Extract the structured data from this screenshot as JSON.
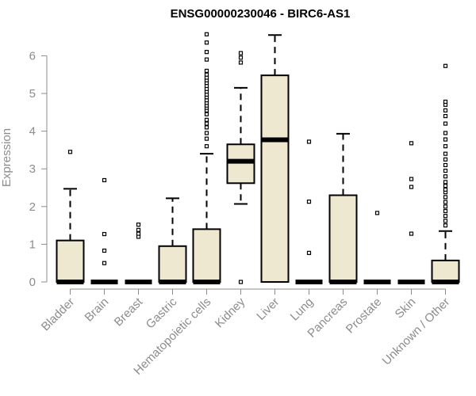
{
  "chart_data": {
    "type": "boxplot",
    "title": "ENSG00000230046 - BIRC6-AS1",
    "xlabel": "",
    "ylabel": "Expression",
    "ylim": [
      0,
      6.6
    ],
    "yticks": [
      0,
      1,
      2,
      3,
      4,
      5,
      6
    ],
    "colors": {
      "box_fill": "#efe8d0",
      "stroke": "#000000",
      "axis": "#8c8c8c"
    },
    "categories": [
      "Bladder",
      "Brain",
      "Breast",
      "Gastric",
      "Hematopoietic cells",
      "Kidney",
      "Liver",
      "Lung",
      "Pancreas",
      "Prostate",
      "Skin",
      "Unknown / Other"
    ],
    "series": [
      {
        "name": "Bladder",
        "q1": 0,
        "median": 0,
        "q3": 1.1,
        "whisker_low": 0,
        "whisker_high": 2.47,
        "outliers": [
          3.45
        ]
      },
      {
        "name": "Brain",
        "q1": 0,
        "median": 0,
        "q3": 0,
        "whisker_low": 0,
        "whisker_high": 0,
        "outliers": [
          0.5,
          0.83,
          1.27,
          2.7
        ]
      },
      {
        "name": "Breast",
        "q1": 0,
        "median": 0,
        "q3": 0,
        "whisker_low": 0,
        "whisker_high": 0,
        "outliers": [
          1.2,
          1.28,
          1.38,
          1.52
        ]
      },
      {
        "name": "Gastric",
        "q1": 0,
        "median": 0,
        "q3": 0.95,
        "whisker_low": 0,
        "whisker_high": 2.22,
        "outliers": []
      },
      {
        "name": "Hematopoietic cells",
        "q1": 0,
        "median": 0,
        "q3": 1.4,
        "whisker_low": 0,
        "whisker_high": 3.4,
        "outliers": [
          3.6,
          3.8,
          3.95,
          4.1,
          4.2,
          4.3,
          4.45,
          4.55,
          4.62,
          4.68,
          4.75,
          4.82,
          4.9,
          4.97,
          5.05,
          5.12,
          5.2,
          5.28,
          5.35,
          5.42,
          5.5,
          5.6,
          5.9,
          6.1,
          6.35,
          6.57
        ]
      },
      {
        "name": "Kidney",
        "q1": 2.62,
        "median": 3.2,
        "q3": 3.65,
        "whisker_low": 2.07,
        "whisker_high": 5.15,
        "outliers": [
          0,
          5.82,
          5.95,
          6.07
        ]
      },
      {
        "name": "Liver",
        "q1": 0,
        "median": 3.77,
        "q3": 5.48,
        "whisker_low": 0,
        "whisker_high": 6.55,
        "outliers": []
      },
      {
        "name": "Lung",
        "q1": 0,
        "median": 0,
        "q3": 0,
        "whisker_low": 0,
        "whisker_high": 0,
        "outliers": [
          0.77,
          2.13,
          3.72
        ]
      },
      {
        "name": "Pancreas",
        "q1": 0,
        "median": 0,
        "q3": 2.3,
        "whisker_low": 0,
        "whisker_high": 3.93,
        "outliers": []
      },
      {
        "name": "Prostate",
        "q1": 0,
        "median": 0,
        "q3": 0,
        "whisker_low": 0,
        "whisker_high": 0,
        "outliers": [
          1.83
        ]
      },
      {
        "name": "Skin",
        "q1": 0,
        "median": 0,
        "q3": 0,
        "whisker_low": 0,
        "whisker_high": 0,
        "outliers": [
          1.28,
          2.52,
          2.73,
          3.68
        ]
      },
      {
        "name": "Unknown / Other",
        "q1": 0,
        "median": 0,
        "q3": 0.57,
        "whisker_low": 0,
        "whisker_high": 1.35,
        "outliers": [
          1.5,
          1.62,
          1.75,
          1.88,
          2.0,
          2.12,
          2.25,
          2.38,
          2.45,
          2.55,
          2.65,
          2.8,
          2.95,
          3.1,
          3.25,
          3.4,
          3.6,
          3.78,
          3.95,
          4.2,
          4.4,
          4.55,
          4.7,
          4.78,
          5.73
        ]
      }
    ]
  }
}
